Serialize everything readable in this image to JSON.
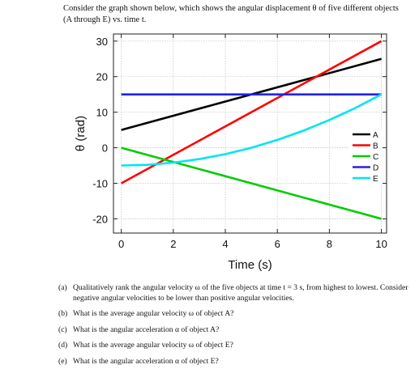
{
  "intro_text": "Consider the graph shown below, which shows the angular displacement θ of five different objects (A through E) vs. time t.",
  "chart_data": {
    "type": "line",
    "xlabel": "Time (s)",
    "ylabel": "θ (rad)",
    "xlim": [
      -0.3,
      10.2
    ],
    "ylim": [
      -24,
      32
    ],
    "xticks": [
      0,
      2,
      4,
      6,
      8,
      10
    ],
    "yticks": [
      -20,
      -10,
      0,
      10,
      20,
      30
    ],
    "grid": true,
    "legend_placement": "lower-right",
    "series": [
      {
        "name": "A",
        "color": "#000000",
        "x": [
          0,
          10
        ],
        "y": [
          5,
          25
        ]
      },
      {
        "name": "B",
        "color": "#ff0000",
        "x": [
          0,
          10
        ],
        "y": [
          -10,
          30
        ]
      },
      {
        "name": "C",
        "color": "#00cc00",
        "x": [
          0,
          10
        ],
        "y": [
          0,
          -20
        ]
      },
      {
        "name": "D",
        "color": "#2222ee",
        "x": [
          0,
          10
        ],
        "y": [
          15,
          15
        ]
      },
      {
        "name": "E",
        "color": "#00e5ee",
        "x": [
          0,
          1,
          2,
          3,
          4,
          5,
          6,
          7,
          8,
          9,
          10
        ],
        "y": [
          -5,
          -4.8,
          -4.2,
          -3.2,
          -1.8,
          0,
          2.2,
          4.8,
          7.8,
          11.2,
          15
        ]
      }
    ]
  },
  "questions": [
    {
      "tag": "(a)",
      "text": "Qualitatively rank the angular velocity ω of the five objects at time t = 3 s, from highest to lowest. Consider negative angular velocities to be lower than positive angular velocities."
    },
    {
      "tag": "(b)",
      "text": "What is the average angular velocity ω of object A?"
    },
    {
      "tag": "(c)",
      "text": "What is the angular acceleration α of object A?"
    },
    {
      "tag": "(d)",
      "text": "What is the average angular velocity ω of object E?"
    },
    {
      "tag": "(e)",
      "text": "What is the angular acceleration α of object E?"
    }
  ]
}
